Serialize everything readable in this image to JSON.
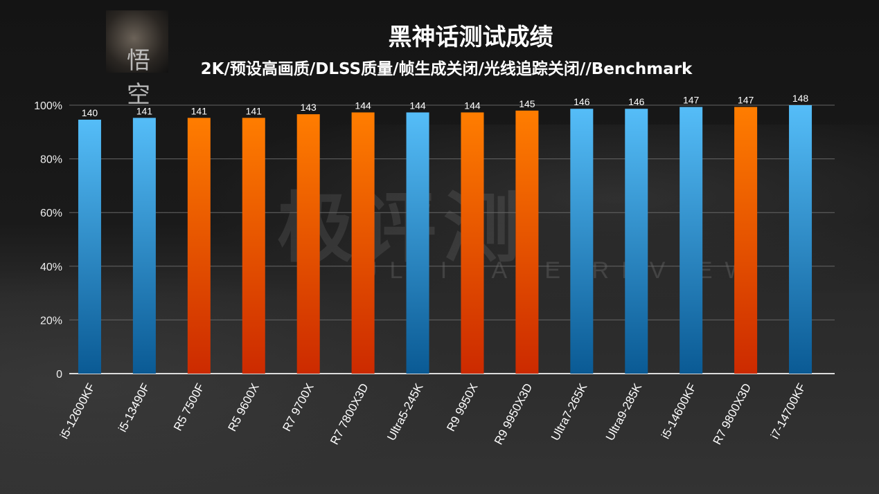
{
  "header": {
    "title": "黑神话测试成绩",
    "subtitle": "2K/预设高画质/DLSS质量/帧生成关闭/光线追踪关闭//Benchmark",
    "thumbnail_text": "悟空"
  },
  "watermark": {
    "main": "极评测",
    "sub": "ULTIMATE REVIEW"
  },
  "colors": {
    "intel": "#4fb8f5",
    "amd": "#ff7a00"
  },
  "chart_data": {
    "type": "bar",
    "title": "黑神话测试成绩",
    "subtitle": "2K/预设高画质/DLSS质量/帧生成关闭/光线追踪关闭//Benchmark",
    "categories": [
      "i5-12600KF",
      "i5-13490F",
      "R5 7500F",
      "R5 9600X",
      "R7 9700X",
      "R7 7800X3D",
      "Ultra5-245K",
      "R9 9950X",
      "R9 9950X3D",
      "Ultra7-265K",
      "Ultra9-285K",
      "i5-14600KF",
      "R7 9800X3D",
      "i7-14700KF"
    ],
    "values": [
      140,
      141,
      141,
      141,
      143,
      144,
      144,
      144,
      145,
      146,
      146,
      147,
      147,
      148
    ],
    "brand": [
      "intel",
      "intel",
      "amd",
      "amd",
      "amd",
      "amd",
      "intel",
      "amd",
      "amd",
      "intel",
      "intel",
      "intel",
      "amd",
      "intel"
    ],
    "y_axis_note": "bar height = value relative to max (148) in percent",
    "yticks": [
      "0",
      "20%",
      "40%",
      "60%",
      "80%",
      "100%"
    ],
    "ylim": [
      0,
      100
    ],
    "grid": true
  }
}
